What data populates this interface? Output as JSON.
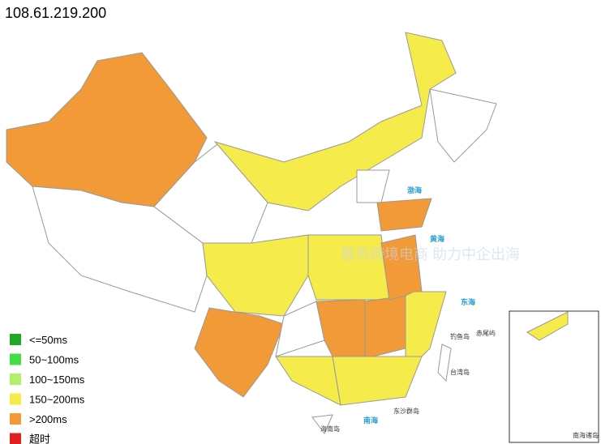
{
  "header": {
    "title": "108.61.219.200"
  },
  "legend": {
    "items": [
      {
        "label": "<=50ms",
        "color": "#22a822"
      },
      {
        "label": "50~100ms",
        "color": "#44dd44"
      },
      {
        "label": "100~150ms",
        "color": "#b2ef6a"
      },
      {
        "label": "150~200ms",
        "color": "#f5eb4a"
      },
      {
        "label": ">200ms",
        "color": "#f39a38"
      },
      {
        "label": "超时",
        "color": "#e02020"
      }
    ]
  },
  "map_labels": {
    "bohai": "渤海",
    "huanghai": "黄海",
    "donghai": "东海",
    "nanhai": "南海",
    "diaoyu": "钓鱼岛",
    "chiwei": "赤尾屿",
    "taiwan": "台湾岛",
    "dongsha": "东沙群岛",
    "hainan": "海南岛",
    "inset": "南海诸岛"
  },
  "watermark": "服务跨境电商 助力中企出海"
}
